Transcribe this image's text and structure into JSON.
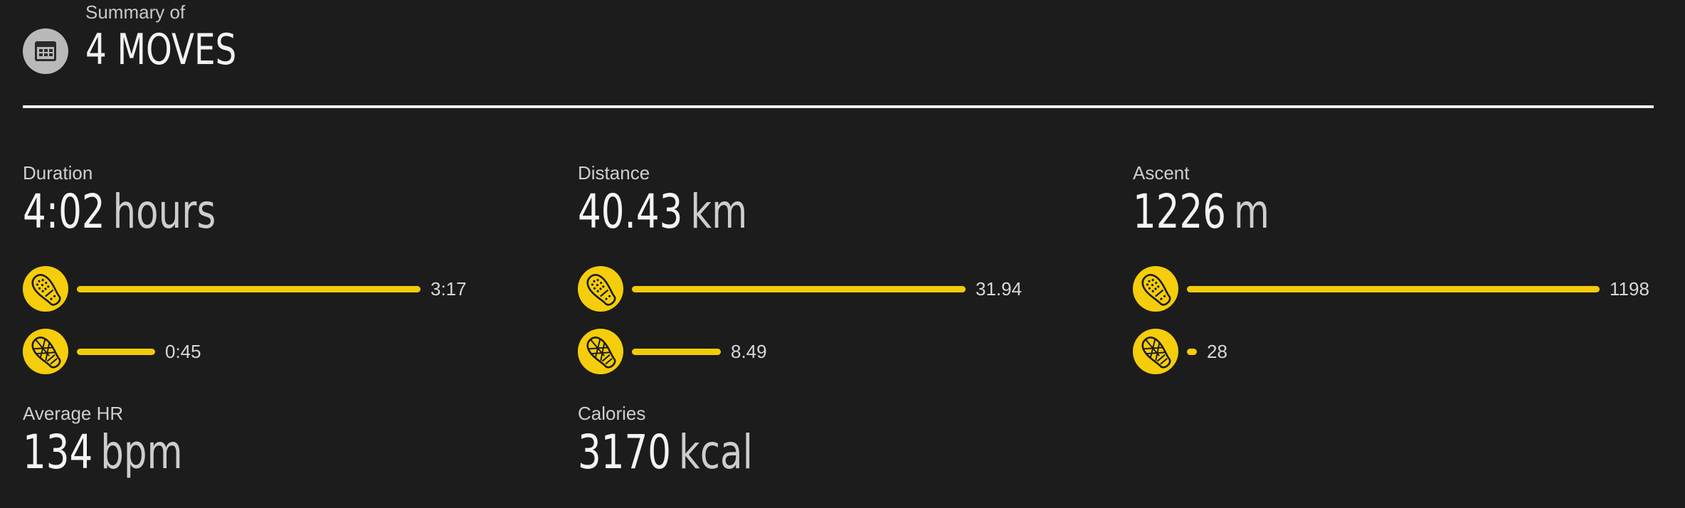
{
  "header": {
    "summary_label": "Summary of",
    "title": "4 MOVES",
    "icon": "calendar-icon"
  },
  "colors": {
    "background": "#1c1c1c",
    "accent": "#f5cd0a",
    "icon_badge": "#b9b9b9",
    "divider": "#f0f0f0"
  },
  "stats": {
    "duration": {
      "label": "Duration",
      "value": "4:02",
      "unit": "hours",
      "bars": [
        {
          "icon": "running-shoe-icon",
          "value": "3:17",
          "fraction": 0.813
        },
        {
          "icon": "trail-shoe-icon",
          "value": "0:45",
          "fraction": 0.186
        }
      ]
    },
    "distance": {
      "label": "Distance",
      "value": "40.43",
      "unit": "km",
      "bars": [
        {
          "icon": "running-shoe-icon",
          "value": "31.94",
          "fraction": 0.79
        },
        {
          "icon": "trail-shoe-icon",
          "value": "8.49",
          "fraction": 0.21
        }
      ]
    },
    "ascent": {
      "label": "Ascent",
      "value": "1226",
      "unit": "m",
      "bars": [
        {
          "icon": "running-shoe-icon",
          "value": "1198",
          "fraction": 0.977
        },
        {
          "icon": "trail-shoe-icon",
          "value": "28",
          "fraction": 0.023
        }
      ]
    },
    "average_hr": {
      "label": "Average HR",
      "value": "134",
      "unit": "bpm"
    },
    "calories": {
      "label": "Calories",
      "value": "3170",
      "unit": "kcal"
    }
  }
}
